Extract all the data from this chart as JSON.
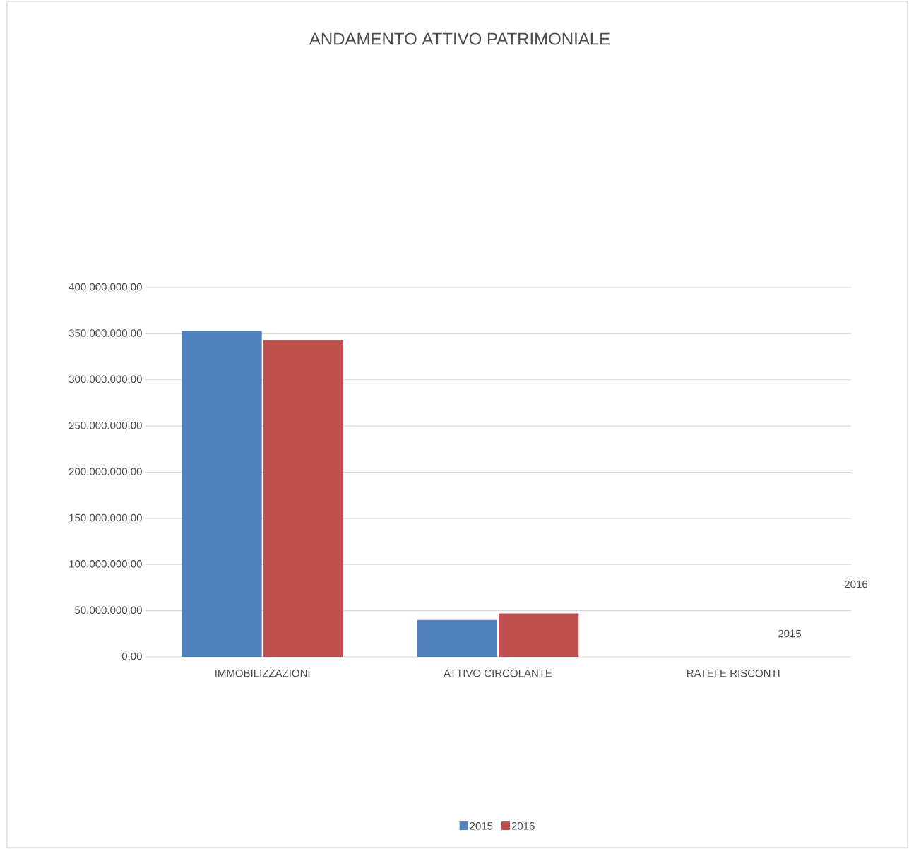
{
  "chart_data": {
    "type": "bar",
    "title": "ANDAMENTO ATTIVO PATRIMONIALE",
    "categories": [
      "IMMOBILIZZAZIONI",
      "ATTIVO CIRCOLANTE",
      "RATEI E RISCONTI"
    ],
    "series": [
      {
        "name": "2015",
        "color": "#4f81bd",
        "values": [
          353000000,
          40000000,
          0
        ]
      },
      {
        "name": "2016",
        "color": "#c0504d",
        "values": [
          343000000,
          47000000,
          0
        ]
      }
    ],
    "ylim": [
      0,
      400000000
    ],
    "yticks": [
      {
        "value": 0,
        "label": "0,00"
      },
      {
        "value": 50000000,
        "label": "50.000.000,00"
      },
      {
        "value": 100000000,
        "label": "100.000.000,00"
      },
      {
        "value": 150000000,
        "label": "150.000.000,00"
      },
      {
        "value": 200000000,
        "label": "200.000.000,00"
      },
      {
        "value": 250000000,
        "label": "250.000.000,00"
      },
      {
        "value": 300000000,
        "label": "300.000.000,00"
      },
      {
        "value": 350000000,
        "label": "350.000.000,00"
      },
      {
        "value": 400000000,
        "label": "400.000.000,00"
      }
    ],
    "grid": "y",
    "legend": "bottom"
  }
}
